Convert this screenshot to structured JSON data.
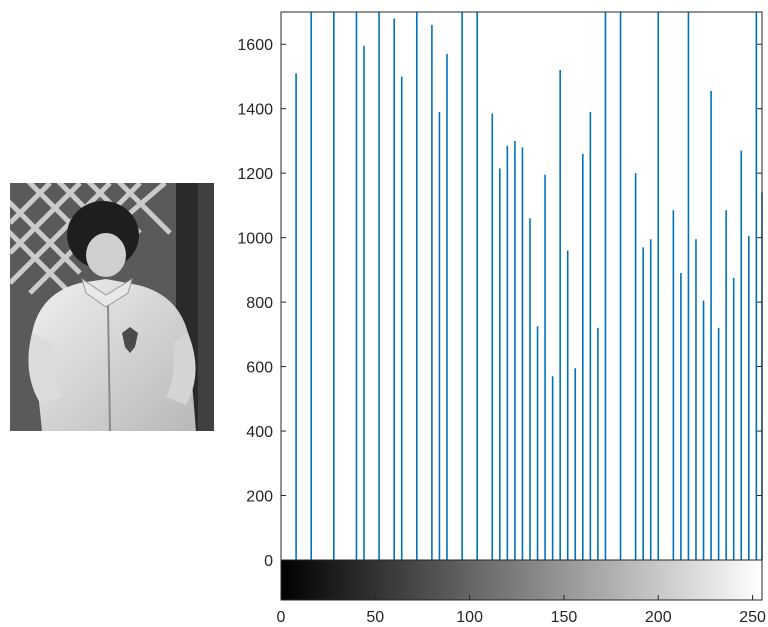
{
  "image": {
    "description_name": "grayscale-photo-of-child-in-jacket"
  },
  "chart_data": {
    "type": "bar",
    "title": "",
    "xlabel": "",
    "ylabel": "",
    "xlim": [
      0,
      255
    ],
    "ylim": [
      0,
      1700
    ],
    "grid": false,
    "legend": "none",
    "colorbar": "grayscale gradient below x-axis, 0 (black) to 255 (white)",
    "bar_color": "#0072BD",
    "axis_color": "#262626",
    "x_ticks": [
      0,
      50,
      100,
      150,
      200,
      250
    ],
    "y_ticks": [
      0,
      200,
      400,
      600,
      800,
      1000,
      1200,
      1400,
      1600
    ],
    "x": [
      8,
      16,
      28,
      40,
      44,
      52,
      60,
      64,
      72,
      80,
      84,
      88,
      96,
      104,
      112,
      116,
      120,
      124,
      128,
      132,
      136,
      140,
      144,
      148,
      152,
      156,
      160,
      164,
      168,
      172,
      180,
      188,
      192,
      196,
      200,
      208,
      212,
      216,
      220,
      224,
      228,
      232,
      236,
      240,
      244,
      248,
      252,
      255
    ],
    "values": [
      1510,
      1700,
      1700,
      1700,
      1595,
      1700,
      1680,
      1500,
      1700,
      1660,
      1390,
      1570,
      1700,
      1700,
      1385,
      1215,
      1285,
      1300,
      1280,
      1060,
      725,
      1195,
      570,
      1520,
      960,
      595,
      1260,
      1390,
      720,
      1700,
      1700,
      1200,
      970,
      995,
      1700,
      1085,
      890,
      1700,
      995,
      805,
      1455,
      720,
      1085,
      875,
      1270,
      1005,
      1700,
      1140
    ]
  }
}
